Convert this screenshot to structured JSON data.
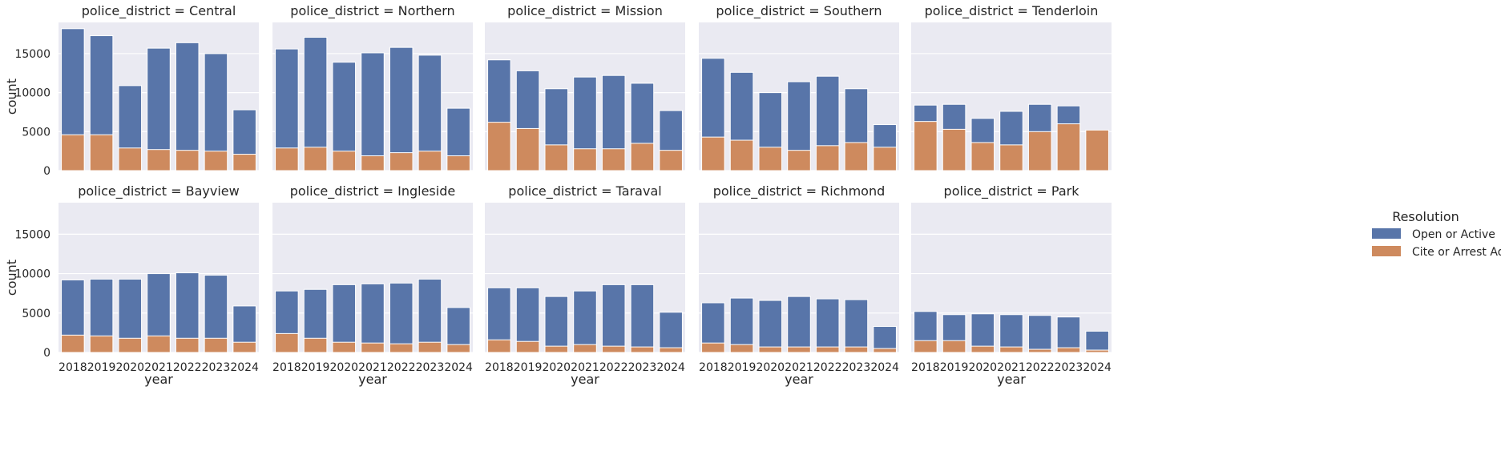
{
  "chart_data": {
    "type": "bar",
    "stacked_overlay": true,
    "facet_row_label_prefix": "police_district = ",
    "xlabel": "year",
    "ylabel": "count",
    "ylim": [
      0,
      19000
    ],
    "yticks": [
      0,
      5000,
      10000,
      15000
    ],
    "grid": true,
    "categories": [
      "2018",
      "2019",
      "2020",
      "2021",
      "2022",
      "2023",
      "2024"
    ],
    "legend": {
      "title": "Resolution",
      "placement": "right",
      "entries": [
        "Open or Active",
        "Cite or Arrest Adult"
      ]
    },
    "colors": {
      "Open or Active": "#5875a9",
      "Cite or Arrest Adult": "#ce8a5e"
    },
    "facets": [
      {
        "title": "police_district = Central",
        "series": [
          {
            "name": "Open or Active",
            "values": [
              18200,
              17300,
              10900,
              15700,
              16400,
              15000,
              7800
            ]
          },
          {
            "name": "Cite or Arrest Adult",
            "values": [
              4600,
              4600,
              2900,
              2700,
              2600,
              2500,
              2100
            ]
          }
        ]
      },
      {
        "title": "police_district = Northern",
        "series": [
          {
            "name": "Open or Active",
            "values": [
              15600,
              17100,
              13900,
              15100,
              15800,
              14800,
              8000
            ]
          },
          {
            "name": "Cite or Arrest Adult",
            "values": [
              2900,
              3000,
              2500,
              1900,
              2300,
              2500,
              1900
            ]
          }
        ]
      },
      {
        "title": "police_district = Mission",
        "series": [
          {
            "name": "Open or Active",
            "values": [
              14200,
              12800,
              10500,
              12000,
              12200,
              11200,
              7700
            ]
          },
          {
            "name": "Cite or Arrest Adult",
            "values": [
              6200,
              5400,
              3300,
              2800,
              2800,
              3500,
              2600
            ]
          }
        ]
      },
      {
        "title": "police_district = Southern",
        "series": [
          {
            "name": "Open or Active",
            "values": [
              14400,
              12600,
              10000,
              11400,
              12100,
              10500,
              5900
            ]
          },
          {
            "name": "Cite or Arrest Adult",
            "values": [
              4300,
              3900,
              3000,
              2600,
              3200,
              3600,
              3000
            ]
          }
        ]
      },
      {
        "title": "police_district = Tenderloin",
        "series": [
          {
            "name": "Open or Active",
            "values": [
              8400,
              8500,
              6700,
              7600,
              8500,
              8300,
              0
            ]
          },
          {
            "name": "Cite or Arrest Adult",
            "values": [
              6300,
              5300,
              3600,
              3300,
              5000,
              6000,
              5200
            ]
          }
        ]
      },
      {
        "title": "police_district = Bayview",
        "series": [
          {
            "name": "Open or Active",
            "values": [
              9200,
              9300,
              9300,
              10000,
              10100,
              9800,
              5900
            ]
          },
          {
            "name": "Cite or Arrest Adult",
            "values": [
              2200,
              2100,
              1800,
              2100,
              1800,
              1800,
              1300
            ]
          }
        ]
      },
      {
        "title": "police_district = Ingleside",
        "series": [
          {
            "name": "Open or Active",
            "values": [
              7800,
              8000,
              8600,
              8700,
              8800,
              9300,
              5700
            ]
          },
          {
            "name": "Cite or Arrest Adult",
            "values": [
              2400,
              1800,
              1300,
              1200,
              1100,
              1300,
              1000
            ]
          }
        ]
      },
      {
        "title": "police_district = Taraval",
        "series": [
          {
            "name": "Open or Active",
            "values": [
              8200,
              8200,
              7100,
              7800,
              8600,
              8600,
              5100
            ]
          },
          {
            "name": "Cite or Arrest Adult",
            "values": [
              1600,
              1400,
              800,
              1000,
              800,
              700,
              600
            ]
          }
        ]
      },
      {
        "title": "police_district = Richmond",
        "series": [
          {
            "name": "Open or Active",
            "values": [
              6300,
              6900,
              6600,
              7100,
              6800,
              6700,
              3300
            ]
          },
          {
            "name": "Cite or Arrest Adult",
            "values": [
              1200,
              1000,
              700,
              700,
              700,
              700,
              500
            ]
          }
        ]
      },
      {
        "title": "police_district = Park",
        "series": [
          {
            "name": "Open or Active",
            "values": [
              5200,
              4800,
              4900,
              4800,
              4700,
              4500,
              2700
            ]
          },
          {
            "name": "Cite or Arrest Adult",
            "values": [
              1500,
              1500,
              800,
              700,
              400,
              600,
              300
            ]
          }
        ]
      }
    ]
  }
}
